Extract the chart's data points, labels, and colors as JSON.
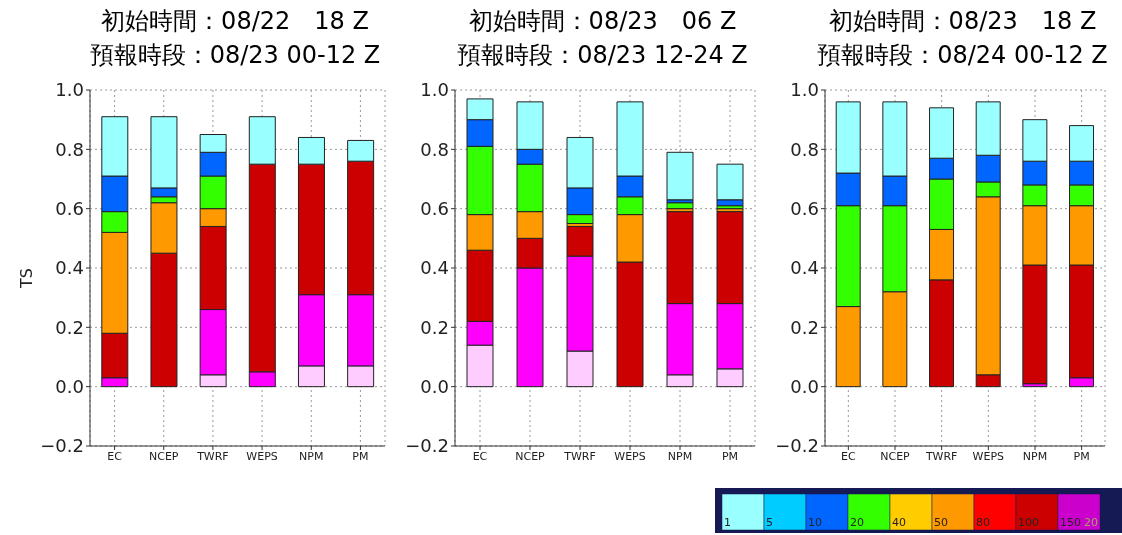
{
  "chart_data": [
    {
      "type": "bar",
      "title": "初始時間：08/22　18 Z",
      "subtitle": "預報時段：08/23 00-12 Z",
      "ylabel": "TS",
      "stacked": true,
      "categories": [
        "EC",
        "NCEP",
        "TWRF",
        "WEPS",
        "NPM",
        "PM"
      ],
      "ylim": [
        -0.2,
        1.0
      ],
      "yticks": [
        {
          "value": -0.2,
          "label": "−0.2"
        },
        {
          "value": 0,
          "label": "0.0"
        },
        {
          "value": 0.2,
          "label": "0.2"
        },
        {
          "value": 0.4,
          "label": "0.4"
        },
        {
          "value": 0.6,
          "label": "0.6"
        },
        {
          "value": 0.8,
          "label": "0.8"
        },
        {
          "value": 1.0,
          "label": "1.0"
        }
      ],
      "grid": true,
      "series": [
        {
          "color": "#ffccff",
          "values": [
            0,
            0,
            0.04,
            0,
            0.07,
            0.07
          ]
        },
        {
          "color": "#ff00ff",
          "values": [
            0.03,
            0,
            0.22,
            0.05,
            0.24,
            0.24
          ]
        },
        {
          "color": "#cc0000",
          "values": [
            0.15,
            0.45,
            0.28,
            0.7,
            0.44,
            0.45
          ]
        },
        {
          "color": "#ff9900",
          "values": [
            0.34,
            0.17,
            0.06,
            0,
            0,
            0
          ]
        },
        {
          "color": "#33ff00",
          "values": [
            0.07,
            0.02,
            0.11,
            0,
            0,
            0
          ]
        },
        {
          "color": "#0066ff",
          "values": [
            0.12,
            0.03,
            0.08,
            0,
            0,
            0
          ]
        },
        {
          "color": "#99ffff",
          "values": [
            0.2,
            0.24,
            0.06,
            0.16,
            0.09,
            0.07
          ]
        }
      ]
    },
    {
      "type": "bar",
      "title": "初始時間：08/23　06 Z",
      "subtitle": "預報時段：08/23 12-24 Z",
      "stacked": true,
      "categories": [
        "EC",
        "NCEP",
        "TWRF",
        "WEPS",
        "NPM",
        "PM"
      ],
      "ylim": [
        -0.2,
        1.0
      ],
      "yticks": [
        {
          "value": -0.2,
          "label": "−0.2"
        },
        {
          "value": 0,
          "label": "0.0"
        },
        {
          "value": 0.2,
          "label": "0.2"
        },
        {
          "value": 0.4,
          "label": "0.4"
        },
        {
          "value": 0.6,
          "label": "0.6"
        },
        {
          "value": 0.8,
          "label": "0.8"
        },
        {
          "value": 1.0,
          "label": "1.0"
        }
      ],
      "grid": true,
      "series": [
        {
          "color": "#ffccff",
          "values": [
            0.14,
            0,
            0.12,
            0,
            0.04,
            0.06
          ]
        },
        {
          "color": "#ff00ff",
          "values": [
            0.08,
            0.4,
            0.32,
            0,
            0.24,
            0.22
          ]
        },
        {
          "color": "#cc0000",
          "values": [
            0.24,
            0.1,
            0.1,
            0.42,
            0.31,
            0.31
          ]
        },
        {
          "color": "#ff9900",
          "values": [
            0.12,
            0.09,
            0.01,
            0.16,
            0.01,
            0.01
          ]
        },
        {
          "color": "#33ff00",
          "values": [
            0.23,
            0.16,
            0.03,
            0.06,
            0.02,
            0.01
          ]
        },
        {
          "color": "#0066ff",
          "values": [
            0.09,
            0.05,
            0.09,
            0.07,
            0.01,
            0.02
          ]
        },
        {
          "color": "#99ffff",
          "values": [
            0.07,
            0.16,
            0.17,
            0.25,
            0.16,
            0.12
          ]
        }
      ]
    },
    {
      "type": "bar",
      "title": "初始時間：08/23　18 Z",
      "subtitle": "預報時段：08/24 00-12 Z",
      "stacked": true,
      "categories": [
        "EC",
        "NCEP",
        "TWRF",
        "WEPS",
        "NPM",
        "PM"
      ],
      "ylim": [
        -0.2,
        1.0
      ],
      "yticks": [
        {
          "value": -0.2,
          "label": "−0.2"
        },
        {
          "value": 0,
          "label": "0.0"
        },
        {
          "value": 0.2,
          "label": "0.2"
        },
        {
          "value": 0.4,
          "label": "0.4"
        },
        {
          "value": 0.6,
          "label": "0.6"
        },
        {
          "value": 0.8,
          "label": "0.8"
        },
        {
          "value": 1.0,
          "label": "1.0"
        }
      ],
      "grid": true,
      "series": [
        {
          "color": "#ffccff",
          "values": [
            0,
            0,
            0,
            0,
            0,
            0
          ]
        },
        {
          "color": "#ff00ff",
          "values": [
            0,
            0,
            0,
            0,
            0.01,
            0.03
          ]
        },
        {
          "color": "#cc0000",
          "values": [
            0,
            0,
            0.36,
            0.04,
            0.4,
            0.38
          ]
        },
        {
          "color": "#ff9900",
          "values": [
            0.27,
            0.32,
            0.17,
            0.6,
            0.2,
            0.2
          ]
        },
        {
          "color": "#33ff00",
          "values": [
            0.34,
            0.29,
            0.17,
            0.05,
            0.07,
            0.07
          ]
        },
        {
          "color": "#0066ff",
          "values": [
            0.11,
            0.1,
            0.07,
            0.09,
            0.08,
            0.08
          ]
        },
        {
          "color": "#99ffff",
          "values": [
            0.24,
            0.25,
            0.17,
            0.18,
            0.14,
            0.12
          ]
        }
      ]
    },
    {
      "type": "other",
      "categories": [
        "1",
        "5",
        "10",
        "20",
        "40",
        "50",
        "80",
        "100",
        "150",
        "20"
      ],
      "colors": [
        "#99ffff",
        "#00ccff",
        "#0066ff",
        "#33ff00",
        "#ffcc00",
        "#ff9900",
        "#ff0000",
        "#cc0000",
        "#cc00cc"
      ]
    }
  ]
}
